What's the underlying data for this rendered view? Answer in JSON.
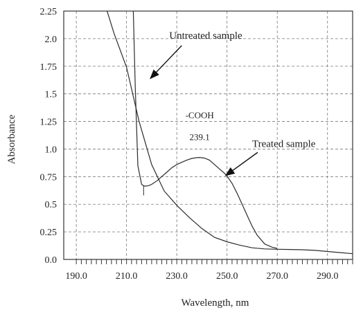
{
  "chart_data": {
    "type": "line",
    "title": "",
    "xlabel": "Wavelength, nm",
    "ylabel": "Absorbance",
    "xlim": [
      185.0,
      300.0
    ],
    "ylim": [
      0.0,
      2.25
    ],
    "x_ticks": [
      190.0,
      210.0,
      230.0,
      250.0,
      270.0,
      290.0
    ],
    "x_tick_labels": [
      "190.0",
      "210.0",
      "230.0",
      "250.0",
      "270.0",
      "290.0"
    ],
    "y_ticks": [
      0.0,
      0.25,
      0.5,
      0.75,
      1.0,
      1.25,
      1.5,
      1.75,
      2.0,
      2.25
    ],
    "y_tick_labels": [
      "0.0",
      "0.25",
      "0.5",
      "0.75",
      "1.0",
      "1.25",
      "1.5",
      "1.75",
      "2.0",
      "2.25"
    ],
    "grid": true,
    "series": [
      {
        "name": "Untreated sample",
        "x": [
          202.0,
          205.0,
          210.0,
          215.0,
          220.0,
          225.0,
          230.0,
          235.0,
          240.0,
          245.0,
          250.0,
          255.0,
          260.0,
          265.0,
          270.0,
          275.0,
          280.0,
          285.0,
          290.0,
          295.0,
          300.0
        ],
        "y": [
          2.27,
          2.05,
          1.74,
          1.25,
          0.86,
          0.62,
          0.49,
          0.38,
          0.28,
          0.2,
          0.16,
          0.13,
          0.105,
          0.095,
          0.092,
          0.09,
          0.088,
          0.082,
          0.072,
          0.062,
          0.052
        ]
      },
      {
        "name": "Treated sample",
        "x": [
          212.7,
          213.5,
          214.5,
          216.0,
          217.0,
          218.0,
          219.0,
          220.0,
          222.0,
          224.0,
          226.0,
          228.0,
          230.0,
          232.0,
          234.0,
          236.0,
          238.0,
          239.1,
          241.0,
          243.0,
          245.0,
          247.0,
          249.0,
          250.0,
          252.0,
          254.0,
          256.0,
          258.0,
          260.0,
          262.0,
          265.0,
          268.0,
          270.0
        ],
        "y": [
          2.25,
          1.55,
          0.85,
          0.68,
          0.665,
          0.665,
          0.67,
          0.68,
          0.71,
          0.75,
          0.79,
          0.83,
          0.86,
          0.88,
          0.9,
          0.915,
          0.922,
          0.924,
          0.918,
          0.9,
          0.86,
          0.82,
          0.78,
          0.755,
          0.69,
          0.6,
          0.5,
          0.4,
          0.3,
          0.22,
          0.14,
          0.11,
          0.1
        ]
      }
    ],
    "annotations": [
      {
        "text": "Untreated sample",
        "x": 227.0,
        "y": 2.0,
        "arrow_to": [
          219.5,
          1.64
        ]
      },
      {
        "text": "Treated sample",
        "x": 260.0,
        "y": 1.02,
        "arrow_to": [
          249.5,
          0.76
        ]
      },
      {
        "text": "-COOH",
        "x": 239.1,
        "y": 1.28
      },
      {
        "text": "239.1",
        "x": 239.1,
        "y": 1.08
      }
    ]
  }
}
